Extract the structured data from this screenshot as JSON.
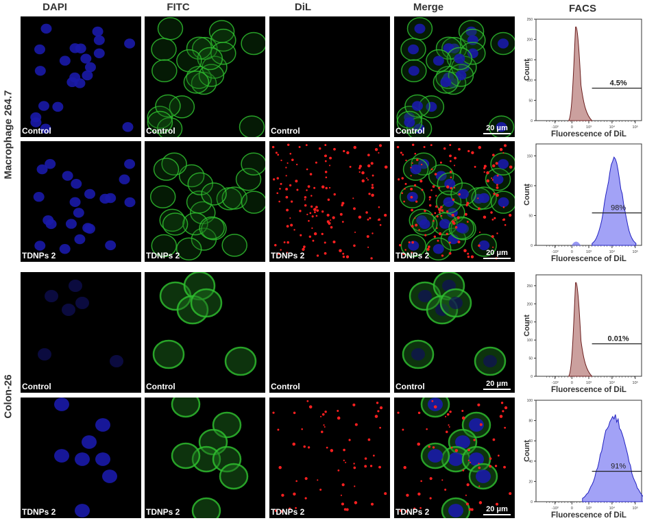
{
  "columns": [
    "DAPI",
    "FITC",
    "DiL",
    "Merge",
    "FACS"
  ],
  "row_groups": [
    "Macrophage 264.7",
    "Colon-26"
  ],
  "scale_bar": "20 μm",
  "panels": [
    {
      "group": 0,
      "label": "Control"
    },
    {
      "group": 0,
      "label": "TDNPs 2"
    },
    {
      "group": 1,
      "label": "Control"
    },
    {
      "group": 1,
      "label": "TDNPs 2"
    }
  ],
  "facs": {
    "ylabel": "Count",
    "xlabel": "Fluorescence of DiL",
    "x_ticks": [
      "-10³",
      "0",
      "10³",
      "10⁴",
      "10⁵"
    ],
    "colors": {
      "control": "#a0524e",
      "treated": "#5555ee"
    },
    "plots": [
      {
        "y_ticks": [
          "0",
          "50",
          "100",
          "150",
          "200",
          "250"
        ],
        "ymax": 250,
        "gate": "4.5%",
        "kind": "control"
      },
      {
        "y_ticks": [
          "0",
          "50",
          "100",
          "150"
        ],
        "ymax": 170,
        "gate": "98%",
        "kind": "treated"
      },
      {
        "y_ticks": [
          "0",
          "50",
          "100",
          "150",
          "200",
          "250"
        ],
        "ymax": 280,
        "gate": "0.01%",
        "kind": "control"
      },
      {
        "y_ticks": [
          "0",
          "20",
          "40",
          "60",
          "80",
          "100"
        ],
        "ymax": 100,
        "gate": "91%",
        "kind": "treated"
      }
    ]
  }
}
